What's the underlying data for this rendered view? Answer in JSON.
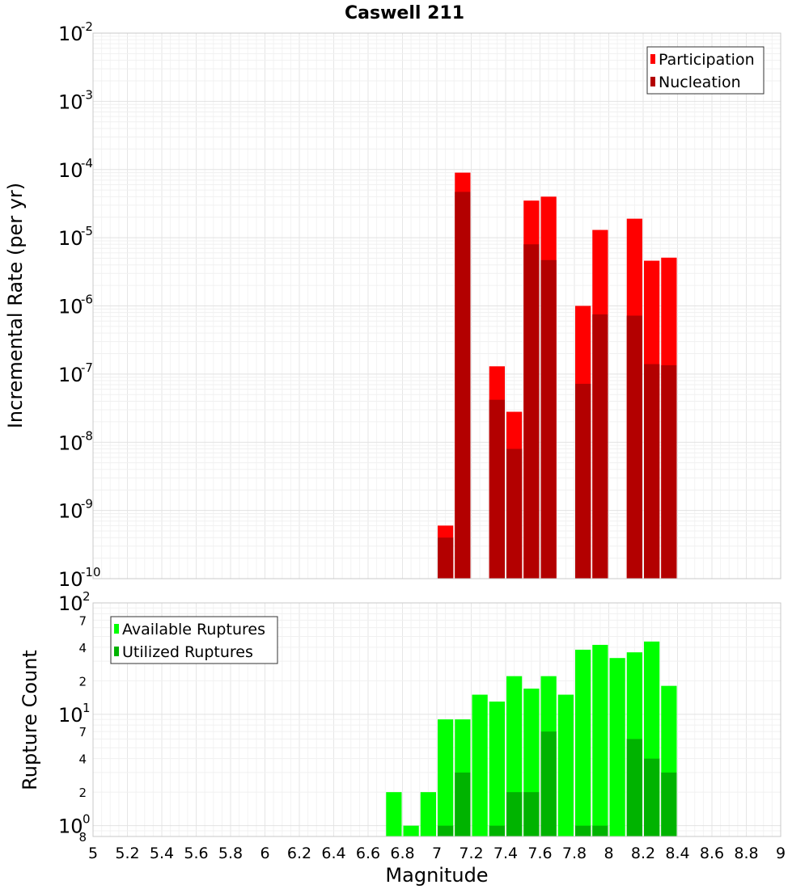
{
  "chart_data": [
    {
      "type": "bar",
      "title": "Caswell 211",
      "xlabel": "",
      "ylabel": "Incremental Rate (per yr)",
      "xlim": [
        5,
        9
      ],
      "ylim": [
        1e-10,
        0.01
      ],
      "yscale": "log",
      "y_tick_exponents": [
        -10,
        -9,
        -8,
        -7,
        -6,
        -5,
        -4,
        -3,
        -2
      ],
      "grid": true,
      "legend_position": "top-right",
      "bar_width": 0.1,
      "series": [
        {
          "name": "Participation",
          "color": "#ff0000",
          "x": [
            7.05,
            7.15,
            7.35,
            7.45,
            7.55,
            7.65,
            7.85,
            7.95,
            8.15,
            8.25,
            8.35
          ],
          "values": [
            6e-10,
            9e-05,
            1.3e-07,
            2.8e-08,
            3.5e-05,
            4e-05,
            1e-06,
            1.3e-05,
            1.9e-05,
            4.6e-06,
            5.1e-06
          ]
        },
        {
          "name": "Nucleation",
          "color": "#b30000",
          "x": [
            7.05,
            7.15,
            7.35,
            7.45,
            7.55,
            7.65,
            7.85,
            7.95,
            8.15,
            8.25,
            8.35
          ],
          "values": [
            4e-10,
            4.7e-05,
            4.2e-08,
            8e-09,
            8e-06,
            4.7e-06,
            7.2e-08,
            7.5e-07,
            7.2e-07,
            1.4e-07,
            1.35e-07
          ]
        }
      ]
    },
    {
      "type": "bar",
      "title": "",
      "xlabel": "Magnitude",
      "ylabel": "Rupture Count",
      "xlim": [
        5,
        9
      ],
      "x_ticks": [
        "5",
        "5.2",
        "5.4",
        "5.6",
        "5.8",
        "6",
        "6.2",
        "6.4",
        "6.6",
        "6.8",
        "7",
        "7.2",
        "7.4",
        "7.6",
        "7.8",
        "8",
        "8.2",
        "8.4",
        "8.6",
        "8.8",
        "9"
      ],
      "ylim": [
        0.8,
        100
      ],
      "yscale": "log",
      "y_major_exponents": [
        0,
        1,
        2
      ],
      "y_minor_labels": [
        {
          "value": 0.8,
          "label": "8"
        },
        {
          "value": 2,
          "label": "2"
        },
        {
          "value": 4,
          "label": "4"
        },
        {
          "value": 7,
          "label": "7"
        },
        {
          "value": 20,
          "label": "2"
        },
        {
          "value": 40,
          "label": "4"
        },
        {
          "value": 70,
          "label": "7"
        }
      ],
      "grid": true,
      "legend_position": "top-left",
      "bar_width": 0.1,
      "series": [
        {
          "name": "Available Ruptures",
          "color": "#00ff00",
          "x": [
            6.75,
            6.85,
            6.95,
            7.05,
            7.15,
            7.25,
            7.35,
            7.45,
            7.55,
            7.65,
            7.75,
            7.85,
            7.95,
            8.05,
            8.15,
            8.25,
            8.35
          ],
          "values": [
            2,
            1,
            2,
            9,
            9,
            15,
            13,
            22,
            17,
            22,
            15,
            38,
            42,
            32,
            36,
            45,
            18
          ]
        },
        {
          "name": "Utilized Ruptures",
          "color": "#00b300",
          "x": [
            7.05,
            7.15,
            7.35,
            7.45,
            7.55,
            7.65,
            7.85,
            7.95,
            8.15,
            8.25,
            8.35
          ],
          "values": [
            1,
            3,
            1,
            2,
            2,
            7,
            1,
            1,
            6,
            4,
            3
          ]
        }
      ]
    }
  ]
}
